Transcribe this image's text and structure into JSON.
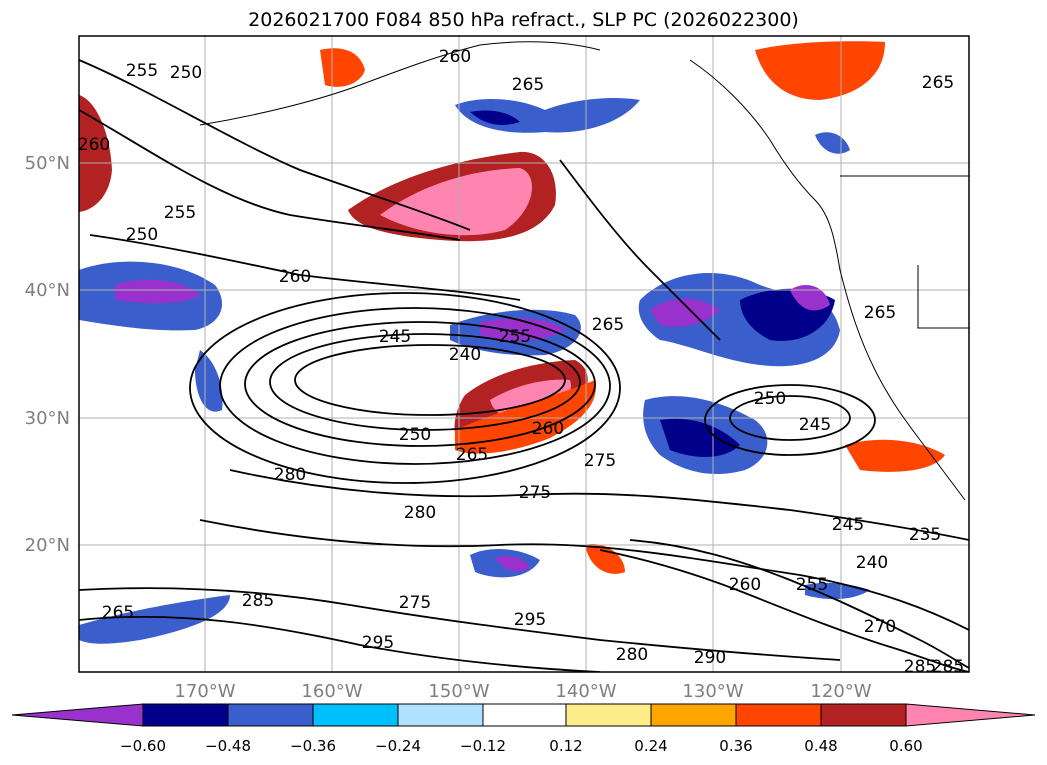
{
  "title": "2026021700 F084 850 hPa refract., SLP PC (2026022300)",
  "map": {
    "lon_labels": [
      "170°W",
      "160°W",
      "150°W",
      "140°W",
      "130°W",
      "120°W"
    ],
    "lat_labels": [
      "50°N",
      "40°N",
      "30°N",
      "20°N"
    ],
    "label_color": "#7f7f7f",
    "contour_labels": [
      "255",
      "250",
      "260",
      "265",
      "265",
      "260",
      "255",
      "250",
      "260",
      "245",
      "240",
      "255",
      "265",
      "265",
      "250",
      "260",
      "265",
      "250",
      "245",
      "275",
      "275",
      "280",
      "280",
      "245",
      "235",
      "240",
      "260",
      "255",
      "270",
      "285",
      "265",
      "275",
      "295",
      "295",
      "280",
      "290",
      "285",
      "285"
    ],
    "shaded_regions": [
      {
        "kind": "positive",
        "level": "0.60",
        "color": "#ff85b0"
      },
      {
        "kind": "positive",
        "level": "0.48",
        "color": "#b22222"
      },
      {
        "kind": "positive",
        "level": "0.36",
        "color": "#ff4500"
      },
      {
        "kind": "negative",
        "level": "-0.60",
        "color": "#9932cc"
      },
      {
        "kind": "negative",
        "level": "-0.48",
        "color": "#00008b"
      },
      {
        "kind": "negative",
        "level": "-0.36",
        "color": "#3a5fcd"
      }
    ]
  },
  "colorbar": {
    "ticks": [
      "−0.60",
      "−0.48",
      "−0.36",
      "−0.24",
      "−0.12",
      "0.12",
      "0.24",
      "0.36",
      "0.48",
      "0.60"
    ],
    "colors": [
      "#9932cc",
      "#00008b",
      "#3a5fcd",
      "#00bfff",
      "#b0e2ff",
      "#ffffff",
      "#ffec8b",
      "#ffa500",
      "#ff4500",
      "#b22222",
      "#ff85b0"
    ]
  }
}
